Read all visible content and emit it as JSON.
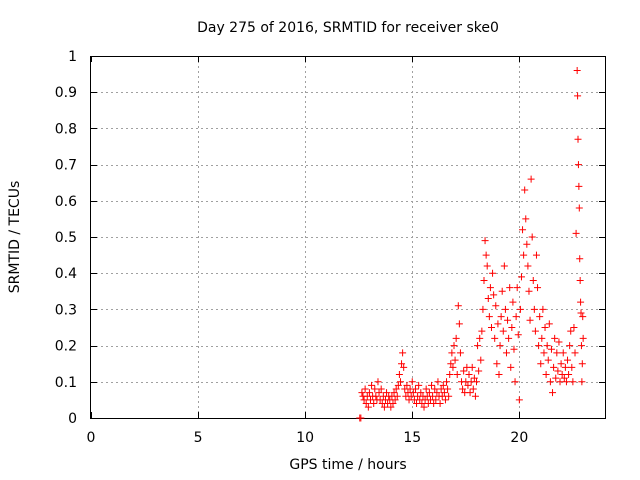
{
  "chart_data": {
    "type": "scatter",
    "title": "Day 275 of 2016, SRMTID for receiver ske0",
    "xlabel": "GPS time / hours",
    "ylabel": "SRMTID / TECUs",
    "xlim": [
      0,
      24
    ],
    "ylim": [
      0,
      1
    ],
    "xticks": [
      0,
      5,
      10,
      15,
      20
    ],
    "xtick_labels": [
      "0",
      "5",
      "10",
      "15",
      "20"
    ],
    "yticks": [
      0,
      0.1,
      0.2,
      0.3,
      0.4,
      0.5,
      0.6,
      0.7,
      0.8,
      0.9,
      1
    ],
    "ytick_labels": [
      "0",
      "0.1",
      "0.2",
      "0.3",
      "0.4",
      "0.5",
      "0.6",
      "0.7",
      "0.8",
      "0.9",
      "1"
    ],
    "grid": true,
    "marker": "+",
    "color": "#ff0000",
    "series": [
      {
        "name": "SRMTID",
        "points": [
          [
            12.55,
            0.0
          ],
          [
            12.6,
            0.0
          ],
          [
            12.65,
            0.07
          ],
          [
            12.7,
            0.06
          ],
          [
            12.75,
            0.05
          ],
          [
            12.8,
            0.08
          ],
          [
            12.85,
            0.04
          ],
          [
            12.9,
            0.06
          ],
          [
            12.95,
            0.03
          ],
          [
            13.0,
            0.07
          ],
          [
            13.05,
            0.05
          ],
          [
            13.1,
            0.09
          ],
          [
            13.15,
            0.06
          ],
          [
            13.2,
            0.04
          ],
          [
            13.25,
            0.08
          ],
          [
            13.3,
            0.06
          ],
          [
            13.35,
            0.05
          ],
          [
            13.4,
            0.1
          ],
          [
            13.45,
            0.07
          ],
          [
            13.5,
            0.05
          ],
          [
            13.55,
            0.08
          ],
          [
            13.6,
            0.04
          ],
          [
            13.65,
            0.06
          ],
          [
            13.7,
            0.03
          ],
          [
            13.75,
            0.05
          ],
          [
            13.8,
            0.07
          ],
          [
            13.85,
            0.04
          ],
          [
            13.9,
            0.06
          ],
          [
            13.95,
            0.05
          ],
          [
            14.0,
            0.03
          ],
          [
            14.05,
            0.06
          ],
          [
            14.1,
            0.04
          ],
          [
            14.15,
            0.07
          ],
          [
            14.2,
            0.05
          ],
          [
            14.25,
            0.08
          ],
          [
            14.3,
            0.06
          ],
          [
            14.35,
            0.09
          ],
          [
            14.4,
            0.12
          ],
          [
            14.45,
            0.1
          ],
          [
            14.5,
            0.15
          ],
          [
            14.55,
            0.18
          ],
          [
            14.6,
            0.14
          ],
          [
            14.65,
            0.08
          ],
          [
            14.7,
            0.06
          ],
          [
            14.75,
            0.09
          ],
          [
            14.8,
            0.07
          ],
          [
            14.85,
            0.05
          ],
          [
            14.9,
            0.08
          ],
          [
            14.95,
            0.06
          ],
          [
            15.0,
            0.1
          ],
          [
            15.05,
            0.07
          ],
          [
            15.1,
            0.05
          ],
          [
            15.15,
            0.08
          ],
          [
            15.2,
            0.04
          ],
          [
            15.25,
            0.06
          ],
          [
            15.3,
            0.09
          ],
          [
            15.35,
            0.05
          ],
          [
            15.4,
            0.07
          ],
          [
            15.45,
            0.04
          ],
          [
            15.5,
            0.06
          ],
          [
            15.55,
            0.03
          ],
          [
            15.6,
            0.05
          ],
          [
            15.65,
            0.08
          ],
          [
            15.7,
            0.06
          ],
          [
            15.75,
            0.04
          ],
          [
            15.8,
            0.07
          ],
          [
            15.85,
            0.05
          ],
          [
            15.9,
            0.09
          ],
          [
            15.95,
            0.06
          ],
          [
            16.0,
            0.04
          ],
          [
            16.05,
            0.08
          ],
          [
            16.1,
            0.05
          ],
          [
            16.15,
            0.07
          ],
          [
            16.2,
            0.1
          ],
          [
            16.25,
            0.06
          ],
          [
            16.3,
            0.04
          ],
          [
            16.35,
            0.08
          ],
          [
            16.4,
            0.06
          ],
          [
            16.45,
            0.09
          ],
          [
            16.5,
            0.07
          ],
          [
            16.55,
            0.05
          ],
          [
            16.6,
            0.1
          ],
          [
            16.65,
            0.08
          ],
          [
            16.7,
            0.06
          ],
          [
            16.75,
            0.12
          ],
          [
            16.8,
            0.15
          ],
          [
            16.85,
            0.18
          ],
          [
            16.9,
            0.14
          ],
          [
            16.95,
            0.2
          ],
          [
            17.0,
            0.16
          ],
          [
            17.05,
            0.22
          ],
          [
            17.1,
            0.12
          ],
          [
            17.15,
            0.31
          ],
          [
            17.2,
            0.26
          ],
          [
            17.25,
            0.18
          ],
          [
            17.3,
            0.1
          ],
          [
            17.35,
            0.08
          ],
          [
            17.4,
            0.13
          ],
          [
            17.45,
            0.07
          ],
          [
            17.5,
            0.1
          ],
          [
            17.55,
            0.14
          ],
          [
            17.6,
            0.09
          ],
          [
            17.65,
            0.12
          ],
          [
            17.7,
            0.07
          ],
          [
            17.75,
            0.1
          ],
          [
            17.8,
            0.14
          ],
          [
            17.85,
            0.08
          ],
          [
            17.9,
            0.11
          ],
          [
            17.95,
            0.06
          ],
          [
            18.0,
            0.1
          ],
          [
            18.05,
            0.2
          ],
          [
            18.1,
            0.13
          ],
          [
            18.15,
            0.22
          ],
          [
            18.2,
            0.16
          ],
          [
            18.25,
            0.24
          ],
          [
            18.3,
            0.3
          ],
          [
            18.35,
            0.38
          ],
          [
            18.4,
            0.49
          ],
          [
            18.45,
            0.45
          ],
          [
            18.5,
            0.42
          ],
          [
            18.55,
            0.33
          ],
          [
            18.6,
            0.28
          ],
          [
            18.65,
            0.36
          ],
          [
            18.7,
            0.25
          ],
          [
            18.75,
            0.4
          ],
          [
            18.8,
            0.34
          ],
          [
            18.85,
            0.22
          ],
          [
            18.9,
            0.31
          ],
          [
            18.95,
            0.15
          ],
          [
            19.0,
            0.26
          ],
          [
            19.05,
            0.12
          ],
          [
            19.1,
            0.2
          ],
          [
            19.15,
            0.28
          ],
          [
            19.2,
            0.35
          ],
          [
            19.25,
            0.24
          ],
          [
            19.3,
            0.42
          ],
          [
            19.35,
            0.3
          ],
          [
            19.4,
            0.18
          ],
          [
            19.45,
            0.27
          ],
          [
            19.5,
            0.22
          ],
          [
            19.55,
            0.36
          ],
          [
            19.6,
            0.14
          ],
          [
            19.65,
            0.25
          ],
          [
            19.7,
            0.32
          ],
          [
            19.75,
            0.19
          ],
          [
            19.8,
            0.1
          ],
          [
            19.85,
            0.28
          ],
          [
            19.9,
            0.36
          ],
          [
            19.95,
            0.23
          ],
          [
            20.0,
            0.05
          ],
          [
            20.05,
            0.3
          ],
          [
            20.1,
            0.39
          ],
          [
            20.15,
            0.52
          ],
          [
            20.2,
            0.45
          ],
          [
            20.25,
            0.63
          ],
          [
            20.3,
            0.55
          ],
          [
            20.35,
            0.48
          ],
          [
            20.4,
            0.42
          ],
          [
            20.45,
            0.35
          ],
          [
            20.5,
            0.27
          ],
          [
            20.55,
            0.66
          ],
          [
            20.6,
            0.5
          ],
          [
            20.65,
            0.38
          ],
          [
            20.7,
            0.3
          ],
          [
            20.75,
            0.24
          ],
          [
            20.8,
            0.45
          ],
          [
            20.85,
            0.36
          ],
          [
            20.9,
            0.2
          ],
          [
            20.95,
            0.28
          ],
          [
            21.0,
            0.15
          ],
          [
            21.05,
            0.22
          ],
          [
            21.1,
            0.3
          ],
          [
            21.15,
            0.18
          ],
          [
            21.2,
            0.25
          ],
          [
            21.25,
            0.12
          ],
          [
            21.3,
            0.2
          ],
          [
            21.35,
            0.16
          ],
          [
            21.4,
            0.26
          ],
          [
            21.45,
            0.1
          ],
          [
            21.5,
            0.19
          ],
          [
            21.55,
            0.07
          ],
          [
            21.6,
            0.14
          ],
          [
            21.65,
            0.22
          ],
          [
            21.7,
            0.11
          ],
          [
            21.75,
            0.18
          ],
          [
            21.8,
            0.13
          ],
          [
            21.85,
            0.21
          ],
          [
            21.9,
            0.1
          ],
          [
            21.95,
            0.15
          ],
          [
            22.0,
            0.12
          ],
          [
            22.05,
            0.18
          ],
          [
            22.1,
            0.11
          ],
          [
            22.15,
            0.14
          ],
          [
            22.2,
            0.1
          ],
          [
            22.25,
            0.16
          ],
          [
            22.3,
            0.12
          ],
          [
            22.35,
            0.2
          ],
          [
            22.4,
            0.24
          ],
          [
            22.45,
            0.14
          ],
          [
            22.5,
            0.1
          ],
          [
            22.55,
            0.25
          ],
          [
            22.6,
            0.18
          ],
          [
            22.65,
            0.51
          ],
          [
            22.7,
            0.96
          ],
          [
            22.72,
            0.89
          ],
          [
            22.74,
            0.77
          ],
          [
            22.76,
            0.7
          ],
          [
            22.78,
            0.64
          ],
          [
            22.8,
            0.58
          ],
          [
            22.82,
            0.44
          ],
          [
            22.84,
            0.38
          ],
          [
            22.86,
            0.32
          ],
          [
            22.88,
            0.29
          ],
          [
            22.9,
            0.2
          ],
          [
            22.92,
            0.1
          ],
          [
            22.94,
            0.15
          ],
          [
            22.96,
            0.28
          ],
          [
            22.98,
            0.22
          ]
        ]
      }
    ]
  }
}
